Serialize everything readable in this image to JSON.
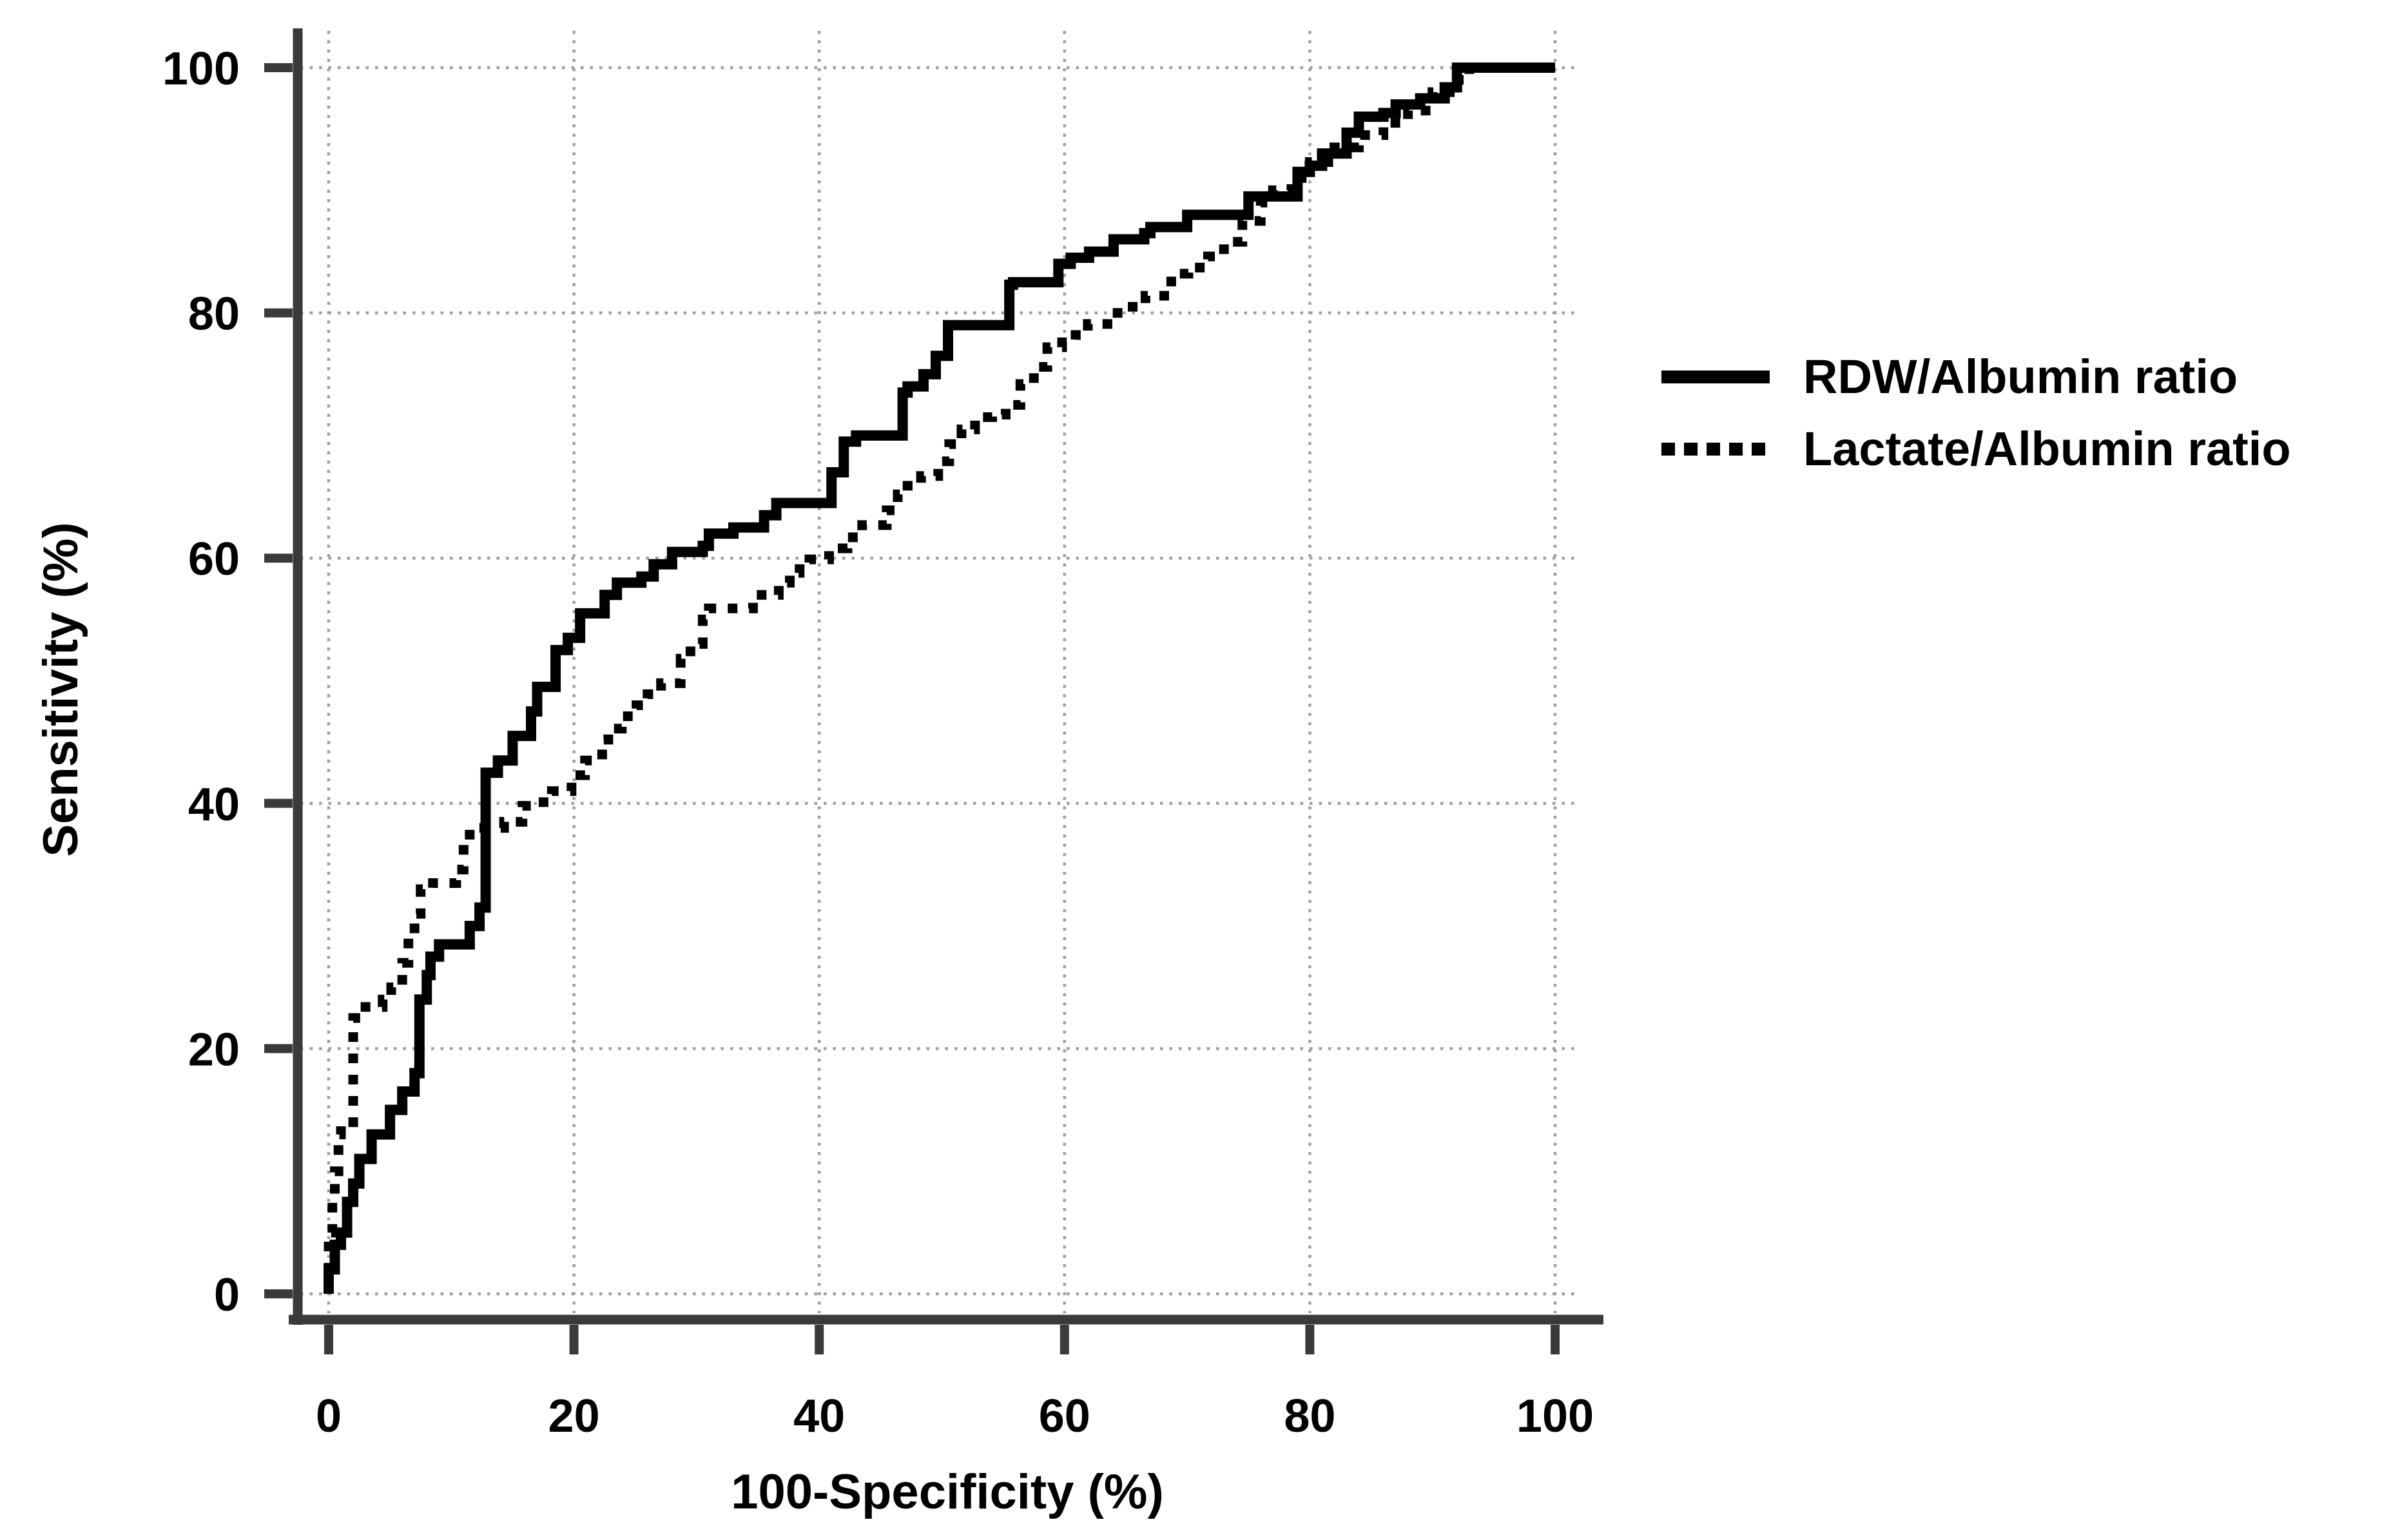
{
  "figure": {
    "background": "#ffffff"
  },
  "colors": {
    "curve": "#000000",
    "axis": "#3a3a3a",
    "grid": "#9e9e9e",
    "text": "#000000"
  },
  "chart_data": {
    "type": "line",
    "subtype": "roc-step-curves",
    "title": "",
    "xlabel": "100-Specificity (%)",
    "ylabel": "Sensitivity (%)",
    "xlim": [
      0,
      100
    ],
    "ylim": [
      0,
      100
    ],
    "x_ticks": [
      0,
      20,
      40,
      60,
      80,
      100
    ],
    "y_ticks": [
      0,
      20,
      40,
      60,
      80,
      100
    ],
    "grid": "dotted",
    "legend_position": "right-middle",
    "series": [
      {
        "name": "RDW/Albumin ratio",
        "style": "solid",
        "color": "#000000",
        "points": [
          [
            0,
            0
          ],
          [
            0.5,
            2
          ],
          [
            1,
            4
          ],
          [
            1.5,
            5
          ],
          [
            2,
            7.5
          ],
          [
            2.5,
            9
          ],
          [
            3.5,
            11
          ],
          [
            5,
            13
          ],
          [
            6,
            15
          ],
          [
            7,
            16.5
          ],
          [
            7.4,
            18
          ],
          [
            7.4,
            20
          ],
          [
            8,
            24
          ],
          [
            8.3,
            26
          ],
          [
            9,
            27.5
          ],
          [
            11.5,
            28.5
          ],
          [
            12.3,
            30
          ],
          [
            12.8,
            31.5
          ],
          [
            12.8,
            41.5
          ],
          [
            13.8,
            42.5
          ],
          [
            15,
            43.5
          ],
          [
            16.5,
            45.5
          ],
          [
            17,
            47.5
          ],
          [
            18.5,
            49.5
          ],
          [
            19.5,
            52.5
          ],
          [
            20.5,
            53.5
          ],
          [
            22.5,
            55.5
          ],
          [
            23.5,
            57
          ],
          [
            25.5,
            58
          ],
          [
            26.5,
            58.5
          ],
          [
            28,
            59.5
          ],
          [
            30.5,
            60.5
          ],
          [
            31,
            61
          ],
          [
            33,
            62
          ],
          [
            35.5,
            62.5
          ],
          [
            36.5,
            63.5
          ],
          [
            38,
            64.5
          ],
          [
            41,
            64.5
          ],
          [
            42,
            67
          ],
          [
            43,
            69.5
          ],
          [
            43.5,
            70
          ],
          [
            46.8,
            70
          ],
          [
            47.2,
            73.5
          ],
          [
            48.5,
            74
          ],
          [
            49.5,
            75
          ],
          [
            50.5,
            76.5
          ],
          [
            51.5,
            79
          ],
          [
            55.5,
            79
          ],
          [
            55.8,
            82.3
          ],
          [
            59.5,
            82.5
          ],
          [
            60.5,
            84
          ],
          [
            62,
            84.5
          ],
          [
            64,
            85
          ],
          [
            66.5,
            86
          ],
          [
            67,
            86.5
          ],
          [
            70,
            87
          ],
          [
            71,
            88
          ],
          [
            75,
            88
          ],
          [
            76,
            89.5
          ],
          [
            79,
            89.5
          ],
          [
            80,
            91.5
          ],
          [
            81,
            92
          ],
          [
            83,
            93
          ],
          [
            84,
            94.7
          ],
          [
            86,
            96
          ],
          [
            87,
            96.3
          ],
          [
            89,
            97
          ],
          [
            91,
            97.5
          ],
          [
            92,
            98.4
          ],
          [
            93.5,
            100
          ],
          [
            100,
            100
          ]
        ]
      },
      {
        "name": "Lactate/Albumin ratio",
        "style": "dotted",
        "color": "#000000",
        "points": [
          [
            0,
            0
          ],
          [
            0,
            3
          ],
          [
            0.3,
            5
          ],
          [
            0.5,
            8
          ],
          [
            0.8,
            10
          ],
          [
            1,
            13
          ],
          [
            2,
            14
          ],
          [
            2,
            21
          ],
          [
            3,
            22.5
          ],
          [
            4.4,
            23.4
          ],
          [
            5.1,
            24
          ],
          [
            6,
            25
          ],
          [
            6.5,
            27
          ],
          [
            7,
            29
          ],
          [
            7.5,
            31
          ],
          [
            8.5,
            33
          ],
          [
            10.4,
            33.5
          ],
          [
            11,
            34.6
          ],
          [
            11.5,
            36.7
          ],
          [
            14.3,
            38
          ],
          [
            15.8,
            38.5
          ],
          [
            16.8,
            39.8
          ],
          [
            18.2,
            40.1
          ],
          [
            19.8,
            41
          ],
          [
            20.9,
            42.3
          ],
          [
            22.3,
            43.5
          ],
          [
            22.8,
            45.2
          ],
          [
            23.9,
            46.1
          ],
          [
            25.1,
            47.1
          ],
          [
            26,
            48
          ],
          [
            27.1,
            48.9
          ],
          [
            28.7,
            49.8
          ],
          [
            29.5,
            51.8
          ],
          [
            30.5,
            53
          ],
          [
            31,
            55
          ],
          [
            34.6,
            55.9
          ],
          [
            36.7,
            57
          ],
          [
            37.6,
            58
          ],
          [
            38.4,
            58.8
          ],
          [
            39.2,
            59.5
          ],
          [
            40.8,
            59.9
          ],
          [
            42.3,
            60.8
          ],
          [
            43.5,
            61.7
          ],
          [
            45.5,
            62.7
          ],
          [
            46.4,
            63.9
          ],
          [
            47.2,
            65.2
          ],
          [
            48.3,
            65.9
          ],
          [
            49.7,
            66.7
          ],
          [
            50.6,
            67.9
          ],
          [
            51.6,
            69.3
          ],
          [
            52.7,
            70.5
          ],
          [
            54.1,
            71.5
          ],
          [
            55.2,
            71.7
          ],
          [
            56.4,
            72.5
          ],
          [
            57.5,
            74.2
          ],
          [
            58.6,
            75.6
          ],
          [
            59.8,
            77.2
          ],
          [
            60.9,
            77.6
          ],
          [
            61.9,
            78.2
          ],
          [
            63.5,
            79.1
          ],
          [
            65,
            80
          ],
          [
            66.6,
            80.5
          ],
          [
            68.7,
            81.4
          ],
          [
            70.1,
            83.2
          ],
          [
            71.7,
            83.7
          ],
          [
            73,
            84.6
          ],
          [
            74.5,
            85.8
          ],
          [
            76,
            87.5
          ],
          [
            77,
            89
          ],
          [
            78.5,
            90
          ],
          [
            80,
            91
          ],
          [
            82,
            92.3
          ],
          [
            84,
            93.5
          ],
          [
            86,
            94.5
          ],
          [
            88,
            95.5
          ],
          [
            90,
            96.5
          ],
          [
            92,
            98
          ],
          [
            93,
            99
          ],
          [
            94.5,
            100
          ],
          [
            100,
            100
          ]
        ]
      }
    ]
  }
}
